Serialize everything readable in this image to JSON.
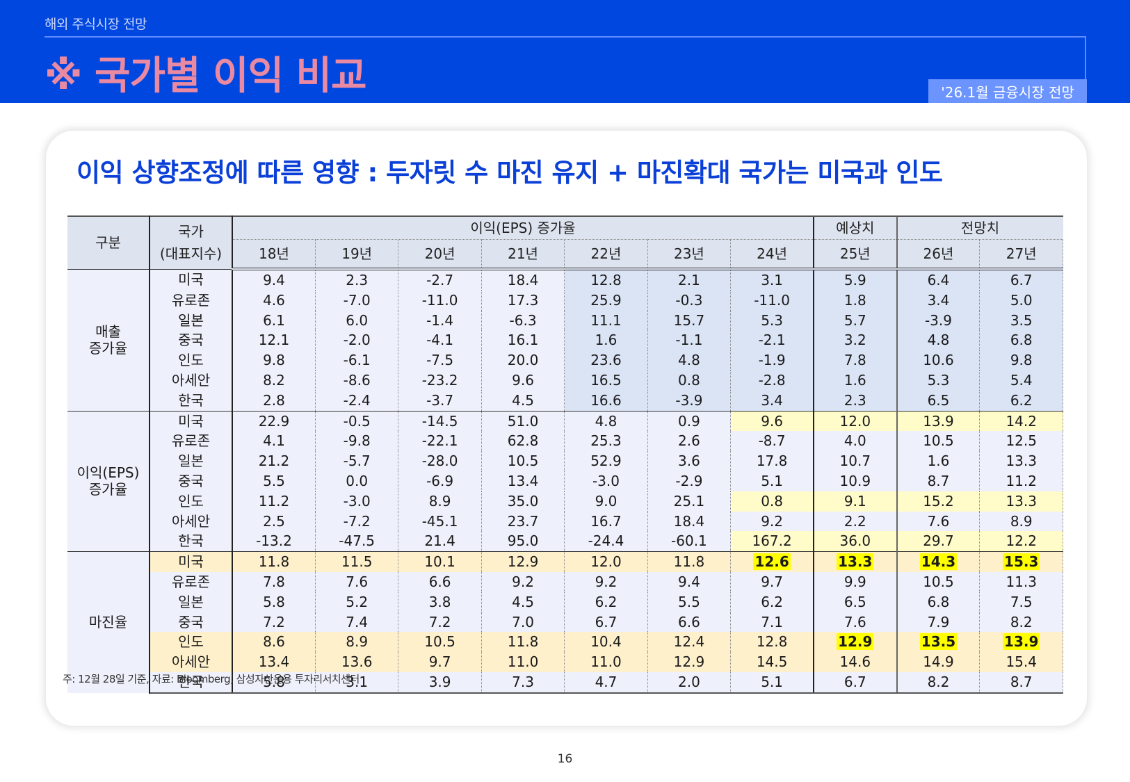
{
  "header": {
    "section_label": "해외 주식시장 전망",
    "title": "※ 국가별 이익 비교",
    "report_tag": "'26.1월 금융시장 전망",
    "colors": {
      "background": "#0047e0",
      "title": "#ea8aa2",
      "tag_bg": "#6b94ff"
    }
  },
  "card": {
    "title": "이익 상향조정에 따른 영향 : 두자릿 수 마진 유지 + 마진확대 국가는 미국과 인도",
    "title_color": "#0a3fd8"
  },
  "table": {
    "headers": {
      "gubun": "구분",
      "country_line1": "국가",
      "country_line2": "(대표지수)",
      "group_actual": "이익(EPS) 증가율",
      "group_estimate": "예상치",
      "group_forecast": "전망치",
      "years": [
        "18년",
        "19년",
        "20년",
        "21년",
        "22년",
        "23년",
        "24년",
        "25년",
        "26년",
        "27년"
      ]
    },
    "groups": [
      {
        "label_line1": "매출",
        "label_line2": "증가율",
        "rows": [
          {
            "country": "미국",
            "values": [
              "9.4",
              "2.3",
              "-2.7",
              "18.4",
              "12.8",
              "2.1",
              "3.1",
              "5.9",
              "6.4",
              "6.7"
            ]
          },
          {
            "country": "유로존",
            "values": [
              "4.6",
              "-7.0",
              "-11.0",
              "17.3",
              "25.9",
              "-0.3",
              "-11.0",
              "1.8",
              "3.4",
              "5.0"
            ]
          },
          {
            "country": "일본",
            "values": [
              "6.1",
              "6.0",
              "-1.4",
              "-6.3",
              "11.1",
              "15.7",
              "5.3",
              "5.7",
              "-3.9",
              "3.5"
            ]
          },
          {
            "country": "중국",
            "values": [
              "12.1",
              "-2.0",
              "-4.1",
              "16.1",
              "1.6",
              "-1.1",
              "-2.1",
              "3.2",
              "4.8",
              "6.8"
            ]
          },
          {
            "country": "인도",
            "values": [
              "9.8",
              "-6.1",
              "-7.5",
              "20.0",
              "23.6",
              "4.8",
              "-1.9",
              "7.8",
              "10.6",
              "9.8"
            ]
          },
          {
            "country": "아세안",
            "values": [
              "8.2",
              "-8.6",
              "-23.2",
              "9.6",
              "16.5",
              "0.8",
              "-2.8",
              "1.6",
              "5.3",
              "5.4"
            ]
          },
          {
            "country": "한국",
            "values": [
              "2.8",
              "-2.4",
              "-3.7",
              "4.5",
              "16.6",
              "-3.9",
              "3.4",
              "2.3",
              "6.5",
              "6.2"
            ]
          }
        ]
      },
      {
        "label_line1": "이익(EPS)",
        "label_line2": "증가율",
        "rows": [
          {
            "country": "미국",
            "values": [
              "22.9",
              "-0.5",
              "-14.5",
              "51.0",
              "4.8",
              "0.9",
              "9.6",
              "12.0",
              "13.9",
              "14.2"
            ]
          },
          {
            "country": "유로존",
            "values": [
              "4.1",
              "-9.8",
              "-22.1",
              "62.8",
              "25.3",
              "2.6",
              "-8.7",
              "4.0",
              "10.5",
              "12.5"
            ]
          },
          {
            "country": "일본",
            "values": [
              "21.2",
              "-5.7",
              "-28.0",
              "10.5",
              "52.9",
              "3.6",
              "17.8",
              "10.7",
              "1.6",
              "13.3"
            ]
          },
          {
            "country": "중국",
            "values": [
              "5.5",
              "0.0",
              "-6.9",
              "13.4",
              "-3.0",
              "-2.9",
              "5.1",
              "10.9",
              "8.7",
              "11.2"
            ]
          },
          {
            "country": "인도",
            "values": [
              "11.2",
              "-3.0",
              "8.9",
              "35.0",
              "9.0",
              "25.1",
              "0.8",
              "9.1",
              "15.2",
              "13.3"
            ]
          },
          {
            "country": "아세안",
            "values": [
              "2.5",
              "-7.2",
              "-45.1",
              "23.7",
              "16.7",
              "18.4",
              "9.2",
              "2.2",
              "7.6",
              "8.9"
            ]
          },
          {
            "country": "한국",
            "values": [
              "-13.2",
              "-47.5",
              "21.4",
              "95.0",
              "-24.4",
              "-60.1",
              "167.2",
              "36.0",
              "29.7",
              "12.2"
            ]
          }
        ]
      },
      {
        "label_line1": "마진율",
        "label_line2": "",
        "rows": [
          {
            "country": "미국",
            "values": [
              "11.8",
              "11.5",
              "10.1",
              "12.9",
              "12.0",
              "11.8",
              "12.6",
              "13.3",
              "14.3",
              "15.3"
            ]
          },
          {
            "country": "유로존",
            "values": [
              "7.8",
              "7.6",
              "6.6",
              "9.2",
              "9.2",
              "9.4",
              "9.7",
              "9.9",
              "10.5",
              "11.3"
            ]
          },
          {
            "country": "일본",
            "values": [
              "5.8",
              "5.2",
              "3.8",
              "4.5",
              "6.2",
              "5.5",
              "6.2",
              "6.5",
              "6.8",
              "7.5"
            ]
          },
          {
            "country": "중국",
            "values": [
              "7.2",
              "7.4",
              "7.2",
              "7.0",
              "6.7",
              "6.6",
              "7.1",
              "7.6",
              "7.9",
              "8.2"
            ]
          },
          {
            "country": "인도",
            "values": [
              "8.6",
              "8.9",
              "10.5",
              "11.8",
              "10.4",
              "12.4",
              "12.8",
              "12.9",
              "13.5",
              "13.9"
            ]
          },
          {
            "country": "아세안",
            "values": [
              "13.4",
              "13.6",
              "9.7",
              "11.0",
              "11.0",
              "12.9",
              "14.5",
              "14.6",
              "14.9",
              "15.4"
            ]
          },
          {
            "country": "한국",
            "values": [
              "5.8",
              "3.1",
              "3.9",
              "7.3",
              "4.7",
              "2.0",
              "5.1",
              "6.7",
              "8.2",
              "8.7"
            ]
          }
        ]
      }
    ],
    "highlights": {
      "eps_yellow_rows": [
        "미국",
        "인도",
        "한국"
      ],
      "eps_yellow_from_year": "24년",
      "margin_orange_rows": [
        "미국",
        "인도",
        "아세안"
      ],
      "margin_bold_yellow_cells": [
        {
          "country": "미국",
          "years": [
            "24년",
            "25년",
            "26년",
            "27년"
          ]
        },
        {
          "country": "인도",
          "years": [
            "25년",
            "26년",
            "27년"
          ]
        }
      ],
      "colors": {
        "yellow_row": "#fffcc9",
        "orange_row": "#fff0cc",
        "marker": "#ffff00",
        "sales_shade": "#dbe4f5"
      }
    }
  },
  "footnote": "주: 12월 28일 기준, 자료: Bloomberg, 삼성자산운용 투자리서치센터",
  "page_number": "16"
}
